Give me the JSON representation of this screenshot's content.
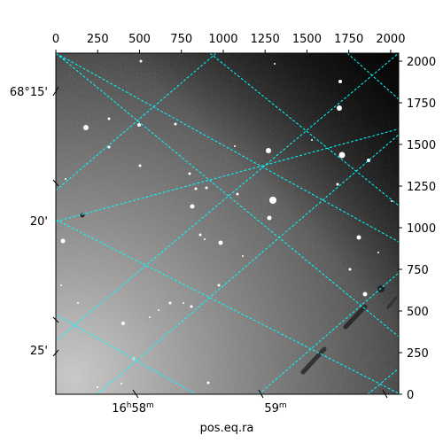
{
  "chart_data": {
    "type": "image",
    "description_free": true,
    "pixel_axes": {
      "x_ticks": [
        0,
        250,
        500,
        750,
        1000,
        1250,
        1500,
        1750,
        2000
      ],
      "y_ticks": [
        0,
        250,
        500,
        750,
        1000,
        1250,
        1500,
        1750,
        2000
      ],
      "xlim": [
        0,
        2048
      ],
      "ylim": [
        0,
        2048
      ]
    },
    "world_axes": {
      "xlabel": "pos.eq.ra",
      "ra_ticks": [
        {
          "h": "16",
          "m": "58",
          "label_h": "h",
          "label_m": "m"
        },
        {
          "m": "59",
          "label_m": "m"
        }
      ],
      "dec_ticks": [
        "68°15'",
        "20'",
        "25'"
      ]
    },
    "grid": true,
    "grid_color": "#00ffff"
  }
}
